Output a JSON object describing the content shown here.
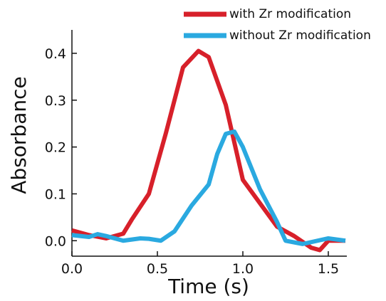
{
  "chart_data": {
    "type": "line",
    "xlabel": "Time (s)",
    "ylabel": "Absorbance",
    "xlim": [
      0,
      1.6
    ],
    "ylim": [
      -0.033,
      0.45
    ],
    "xticks": [
      {
        "value": 0,
        "label": "0.0"
      },
      0.5,
      {
        "value": 1,
        "label": "1.0"
      },
      1.5
    ],
    "yticks": [
      {
        "value": 0,
        "label": "0.0"
      },
      0.1,
      0.2,
      0.3,
      0.4
    ],
    "series": [
      {
        "name": "with Zr modification",
        "color": "#d7202a",
        "x": [
          0,
          0.1,
          0.2,
          0.3,
          0.35,
          0.45,
          0.55,
          0.65,
          0.74,
          0.8,
          0.9,
          1.0,
          1.1,
          1.2,
          1.3,
          1.4,
          1.45,
          1.5,
          1.6
        ],
        "values": [
          0.022,
          0.012,
          0.005,
          0.015,
          0.045,
          0.1,
          0.23,
          0.37,
          0.405,
          0.392,
          0.29,
          0.13,
          0.08,
          0.03,
          0.01,
          -0.015,
          -0.02,
          0.0,
          0.0
        ]
      },
      {
        "name": "without Zr modification",
        "color": "#2aa9e0",
        "x": [
          0,
          0.1,
          0.15,
          0.2,
          0.3,
          0.4,
          0.45,
          0.52,
          0.6,
          0.7,
          0.8,
          0.85,
          0.9,
          0.95,
          1.0,
          1.1,
          1.2,
          1.25,
          1.35,
          1.5,
          1.6
        ],
        "values": [
          0.012,
          0.008,
          0.014,
          0.01,
          0.0,
          0.005,
          0.004,
          0.0,
          0.02,
          0.075,
          0.12,
          0.185,
          0.228,
          0.233,
          0.2,
          0.11,
          0.04,
          0.0,
          -0.007,
          0.005,
          0.0
        ]
      }
    ]
  }
}
